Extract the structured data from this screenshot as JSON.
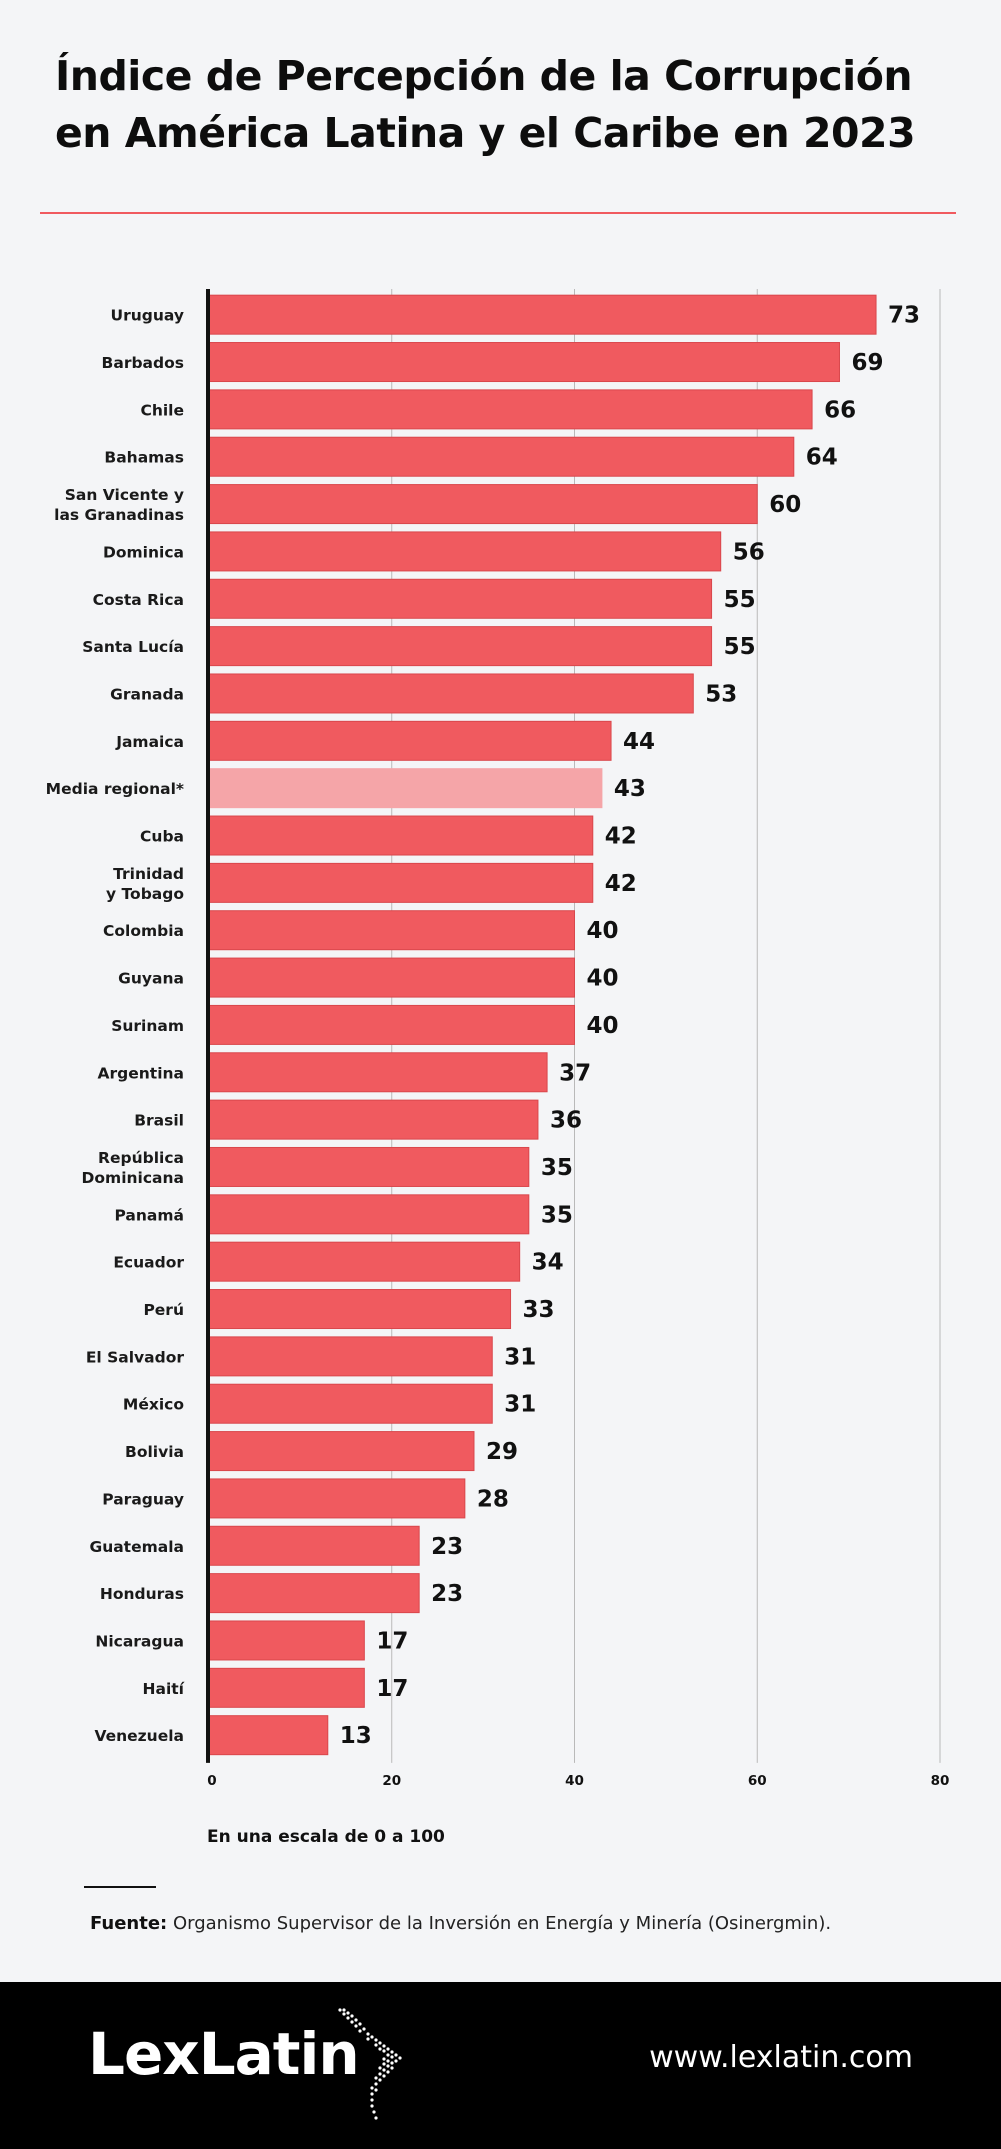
{
  "title_lines": [
    "Índice de Percepción de la Corrupción",
    "en América Latina y el Caribe en 2023"
  ],
  "chart_data": {
    "type": "bar",
    "orientation": "horizontal",
    "categories": [
      [
        "Uruguay"
      ],
      [
        "Barbados"
      ],
      [
        "Chile"
      ],
      [
        "Bahamas"
      ],
      [
        "San Vicente y",
        "las Granadinas"
      ],
      [
        "Dominica"
      ],
      [
        "Costa Rica"
      ],
      [
        "Santa Lucía"
      ],
      [
        "Granada"
      ],
      [
        "Jamaica"
      ],
      [
        "Media regional*"
      ],
      [
        "Cuba"
      ],
      [
        "Trinidad",
        "y Tobago"
      ],
      [
        "Colombia"
      ],
      [
        "Guyana"
      ],
      [
        "Surinam"
      ],
      [
        "Argentina"
      ],
      [
        "Brasil"
      ],
      [
        "República",
        "Dominicana"
      ],
      [
        "Panamá"
      ],
      [
        "Ecuador"
      ],
      [
        "Perú"
      ],
      [
        "El Salvador"
      ],
      [
        "México"
      ],
      [
        "Bolivia"
      ],
      [
        "Paraguay"
      ],
      [
        "Guatemala"
      ],
      [
        "Honduras"
      ],
      [
        "Nicaragua"
      ],
      [
        "Haití"
      ],
      [
        "Venezuela"
      ]
    ],
    "values": [
      73,
      69,
      66,
      64,
      60,
      56,
      55,
      55,
      53,
      44,
      43,
      42,
      42,
      40,
      40,
      40,
      37,
      36,
      35,
      35,
      34,
      33,
      31,
      31,
      29,
      28,
      23,
      23,
      17,
      17,
      13
    ],
    "highlight_index": 10,
    "xlim": [
      0,
      80
    ],
    "xticks": [
      0,
      20,
      40,
      60,
      80
    ],
    "grid": "vertical",
    "colors": {
      "bar": "#f05a5f",
      "bar_stroke": "#d9474c",
      "highlight": "#f5a5a8",
      "axis": "#111111",
      "grid": "#b9b9b9"
    }
  },
  "scale_note": "En una escala de 0 a 100",
  "source": {
    "label": "Fuente:",
    "text": " Organismo Supervisor de la Inversión en Energía y Minería (Osinergmin)."
  },
  "footer": {
    "brand": "LexLatin",
    "website": "www.lexlatin.com",
    "icon": "latin-america-map-icon"
  }
}
